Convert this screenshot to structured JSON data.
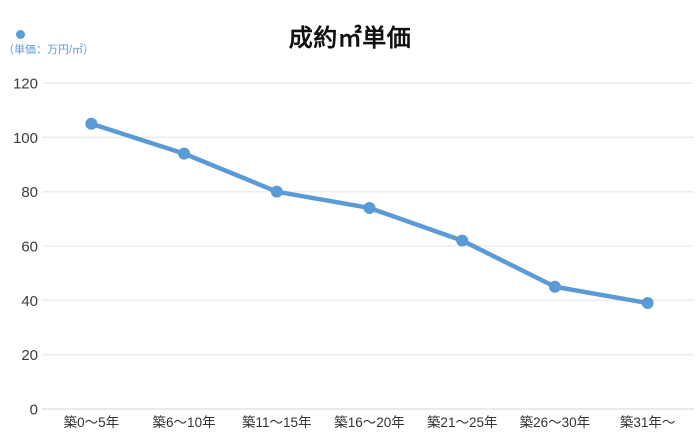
{
  "legend": {
    "label": "（単価：万円/㎡）",
    "marker": "circle-dot-icon"
  },
  "colors": {
    "series_blue": "#5b9bd5",
    "grid_line": "#ededed",
    "axis_line": "#e3e3e3",
    "title_text": "#111111",
    "tick_text": "#3d3d3d"
  },
  "chart_data": {
    "type": "line",
    "title": "成約㎡単価",
    "series_label": "単価：万円/㎡",
    "categories": [
      "築0～5年",
      "築6～10年",
      "築11～15年",
      "築16～20年",
      "築21～25年",
      "築26～30年",
      "築31年～"
    ],
    "values": [
      105,
      94,
      80,
      74,
      62,
      45,
      39
    ],
    "xlabel": "",
    "ylabel": "万円/㎡",
    "ylim": [
      0,
      120
    ],
    "yticks": [
      0,
      20,
      40,
      60,
      80,
      100,
      120
    ],
    "grid": "horizontal",
    "legend_position": "top-left",
    "line_color": "#5b9bd5",
    "marker": "filled-circle"
  }
}
